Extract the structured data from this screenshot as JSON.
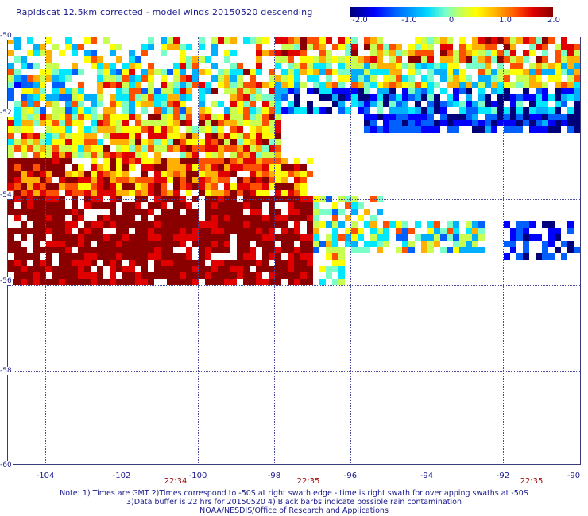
{
  "title": "Rapidscat 12.5km corrected - model winds 20150520 descending",
  "colorbar": {
    "ticks": [
      "-2.0",
      "-1.0",
      "0",
      "1.0",
      "2.0"
    ],
    "min": -2.0,
    "max": 2.0
  },
  "map": {
    "lon_range": [
      -105,
      -90
    ],
    "lat_range": [
      -60,
      -50
    ],
    "lon_ticks": [
      "-104",
      "-102",
      "-100",
      "-98",
      "-96",
      "-94",
      "-92",
      "-90"
    ],
    "lat_ticks": [
      "-50",
      "-52",
      "-54",
      "-56",
      "-58",
      "-60"
    ],
    "grid": true,
    "times": [
      "22:34",
      "22:35",
      "22:35"
    ]
  },
  "notes": {
    "line1": "Note: 1) Times are GMT 2)Times correspond to -50S at right swath edge - time is right swath for overlapping swaths at -50S",
    "line2": "3)Data buffer is 22 hrs for 20150520 4) Black barbs indicate possible rain contamination",
    "line3": "NOAA/NESDIS/Office of Research and Applications"
  }
}
